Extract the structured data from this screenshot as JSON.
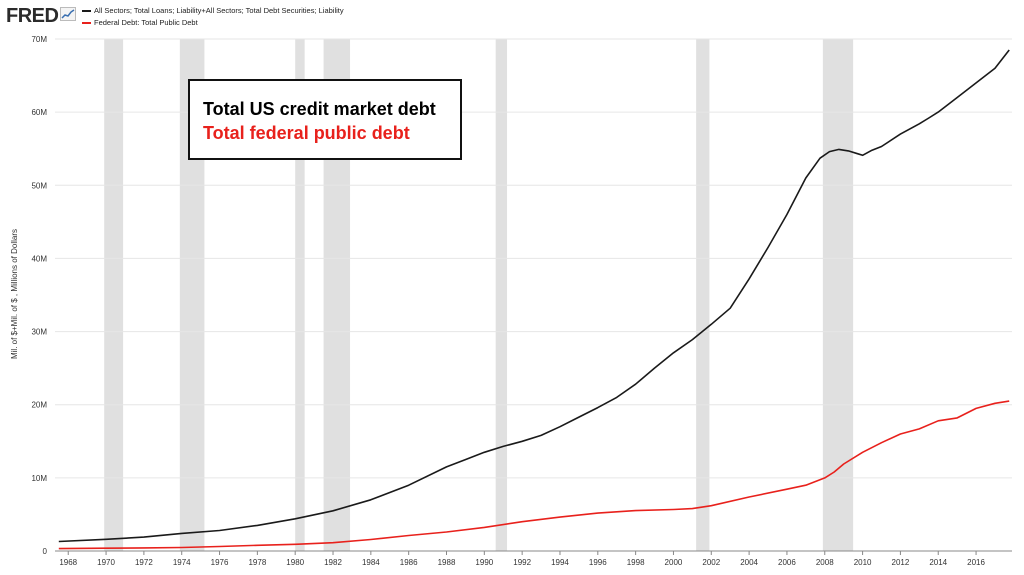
{
  "header": {
    "logo": "FRED",
    "logo_icon": "line-chart-icon"
  },
  "callout": {
    "line1": "Total US credit market debt",
    "line2": "Total federal public debt"
  },
  "colors": {
    "series1": "#1a1a1a",
    "series2": "#e8211c",
    "recession": "#e0e0e0",
    "grid": "#e6e6e6"
  },
  "chart_data": {
    "type": "line",
    "ylabel": "Mil. of $+Mil. of $ , Millions of Dollars",
    "xlim": [
      1967.3,
      2017.9
    ],
    "ylim": [
      0,
      70000000
    ],
    "grid": "horizontal",
    "legend_placement": "top-left",
    "y_ticks": [
      {
        "value": 0,
        "label": "0"
      },
      {
        "value": 10000000,
        "label": "10M"
      },
      {
        "value": 20000000,
        "label": "20M"
      },
      {
        "value": 30000000,
        "label": "30M"
      },
      {
        "value": 40000000,
        "label": "40M"
      },
      {
        "value": 50000000,
        "label": "50M"
      },
      {
        "value": 60000000,
        "label": "60M"
      },
      {
        "value": 70000000,
        "label": "70M"
      }
    ],
    "x_ticks": [
      {
        "value": 1968,
        "label": "1968"
      },
      {
        "value": 1970,
        "label": "1970"
      },
      {
        "value": 1972,
        "label": "1972"
      },
      {
        "value": 1974,
        "label": "1974"
      },
      {
        "value": 1976,
        "label": "1976"
      },
      {
        "value": 1978,
        "label": "1978"
      },
      {
        "value": 1980,
        "label": "1980"
      },
      {
        "value": 1982,
        "label": "1982"
      },
      {
        "value": 1984,
        "label": "1984"
      },
      {
        "value": 1986,
        "label": "1986"
      },
      {
        "value": 1988,
        "label": "1988"
      },
      {
        "value": 1990,
        "label": "1990"
      },
      {
        "value": 1992,
        "label": "1992"
      },
      {
        "value": 1994,
        "label": "1994"
      },
      {
        "value": 1996,
        "label": "1996"
      },
      {
        "value": 1998,
        "label": "1998"
      },
      {
        "value": 2000,
        "label": "2000"
      },
      {
        "value": 2002,
        "label": "2002"
      },
      {
        "value": 2004,
        "label": "2004"
      },
      {
        "value": 2006,
        "label": "2006"
      },
      {
        "value": 2008,
        "label": "2008"
      },
      {
        "value": 2010,
        "label": "2010"
      },
      {
        "value": 2012,
        "label": "2012"
      },
      {
        "value": 2014,
        "label": "2014"
      },
      {
        "value": 2016,
        "label": "2016"
      }
    ],
    "recessions": [
      [
        1969.9,
        1970.9
      ],
      [
        1973.9,
        1975.2
      ],
      [
        1980.0,
        1980.5
      ],
      [
        1981.5,
        1982.9
      ],
      [
        1990.6,
        1991.2
      ],
      [
        2001.2,
        2001.9
      ],
      [
        2007.9,
        2009.5
      ]
    ],
    "series": [
      {
        "name": "All Sectors; Total Loans; Liability+All Sectors; Total Debt Securities; Liability",
        "color": "#1a1a1a",
        "x": [
          1967.5,
          1970,
          1972,
          1974,
          1976,
          1978,
          1980,
          1982,
          1984,
          1986,
          1988,
          1989,
          1990,
          1991,
          1992,
          1993,
          1994,
          1995,
          1996,
          1997,
          1998,
          1999,
          2000,
          2001,
          2002,
          2003,
          2004,
          2005,
          2006,
          2007,
          2007.75,
          2008.25,
          2008.75,
          2009.25,
          2009.75,
          2010,
          2010.5,
          2011,
          2012,
          2013,
          2013.5,
          2014,
          2015,
          2016,
          2017,
          2017.75
        ],
        "y": [
          1300000,
          1600000,
          1900000,
          2400000,
          2800000,
          3500000,
          4400000,
          5500000,
          7000000,
          9000000,
          11500000,
          12500000,
          13500000,
          14300000,
          15000000,
          15800000,
          17000000,
          18300000,
          19600000,
          21000000,
          22800000,
          25000000,
          27100000,
          28900000,
          31000000,
          33200000,
          37200000,
          41500000,
          46000000,
          51000000,
          53700000,
          54600000,
          54900000,
          54700000,
          54300000,
          54100000,
          54800000,
          55300000,
          57000000,
          58400000,
          59200000,
          60000000,
          62000000,
          64000000,
          66000000,
          68500000
        ]
      },
      {
        "name": "Federal Debt: Total Public Debt",
        "color": "#e8211c",
        "x": [
          1967.5,
          1970,
          1972,
          1974,
          1976,
          1978,
          1980,
          1982,
          1984,
          1986,
          1988,
          1990,
          1992,
          1994,
          1996,
          1998,
          2000,
          2001,
          2002,
          2004,
          2006,
          2007,
          2008,
          2008.5,
          2009,
          2010,
          2011,
          2012,
          2013,
          2014,
          2015,
          2016,
          2017,
          2017.75
        ],
        "y": [
          330000,
          380000,
          430000,
          480000,
          620000,
          780000,
          910000,
          1140000,
          1570000,
          2120000,
          2600000,
          3230000,
          4000000,
          4640000,
          5180000,
          5530000,
          5670000,
          5800000,
          6200000,
          7380000,
          8450000,
          9000000,
          10000000,
          10800000,
          11900000,
          13500000,
          14800000,
          16000000,
          16700000,
          17800000,
          18200000,
          19500000,
          20200000,
          20500000
        ]
      }
    ]
  }
}
